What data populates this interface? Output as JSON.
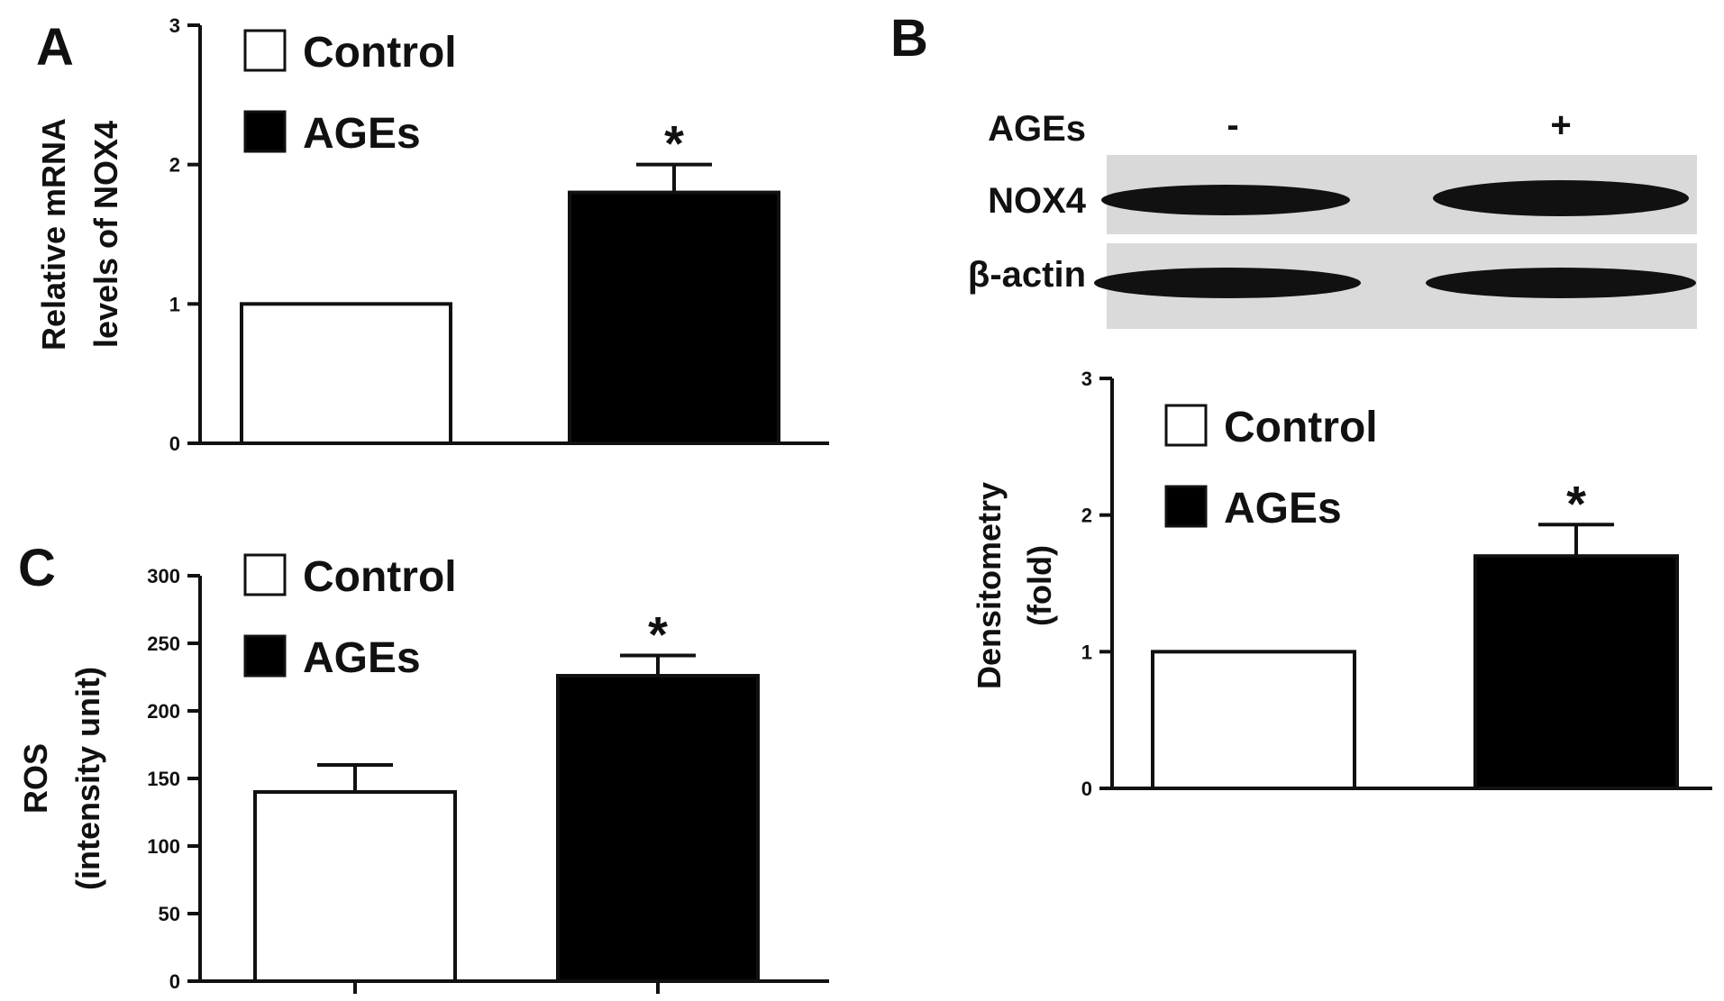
{
  "panels": {
    "A": "A",
    "B": "B",
    "C": "C"
  },
  "legend": {
    "control": "Control",
    "ages": "AGEs"
  },
  "colors": {
    "control_fill": "#ffffff",
    "ages_fill": "#000000",
    "stroke": "#111111"
  },
  "blot": {
    "treatment_label": "AGEs",
    "lane_minus": "-",
    "lane_plus": "+",
    "rows": [
      "NOX4",
      "β-actin"
    ]
  },
  "chart_data": [
    {
      "panel": "A",
      "type": "bar",
      "ylabel": [
        "Relative mRNA",
        "levels of NOX4"
      ],
      "ylim": [
        0,
        3
      ],
      "yticks": [
        0,
        1,
        2,
        3
      ],
      "legend_position": "top-left",
      "series": [
        {
          "name": "Control",
          "value": 1.0,
          "error": 0,
          "significant": false
        },
        {
          "name": "AGEs",
          "value": 1.8,
          "error": 0.2,
          "significant": true
        }
      ],
      "significance_mark": "*"
    },
    {
      "panel": "B",
      "type": "bar",
      "ylabel": [
        "Densitometry",
        "(fold)"
      ],
      "ylim": [
        0,
        3
      ],
      "yticks": [
        0,
        1,
        2,
        3
      ],
      "legend_position": "top-left",
      "series": [
        {
          "name": "Control",
          "value": 1.0,
          "error": 0,
          "significant": false
        },
        {
          "name": "AGEs",
          "value": 1.7,
          "error": 0.23,
          "significant": true
        }
      ],
      "significance_mark": "*"
    },
    {
      "panel": "C",
      "type": "bar",
      "ylabel": [
        "ROS",
        "(intensity unit)"
      ],
      "ylim": [
        0,
        300
      ],
      "yticks": [
        0,
        50,
        100,
        150,
        200,
        250,
        300
      ],
      "legend_position": "top-left",
      "series": [
        {
          "name": "Control",
          "value": 140,
          "error": 20,
          "significant": false
        },
        {
          "name": "AGEs",
          "value": 226,
          "error": 15,
          "significant": true
        }
      ],
      "significance_mark": "*"
    }
  ]
}
